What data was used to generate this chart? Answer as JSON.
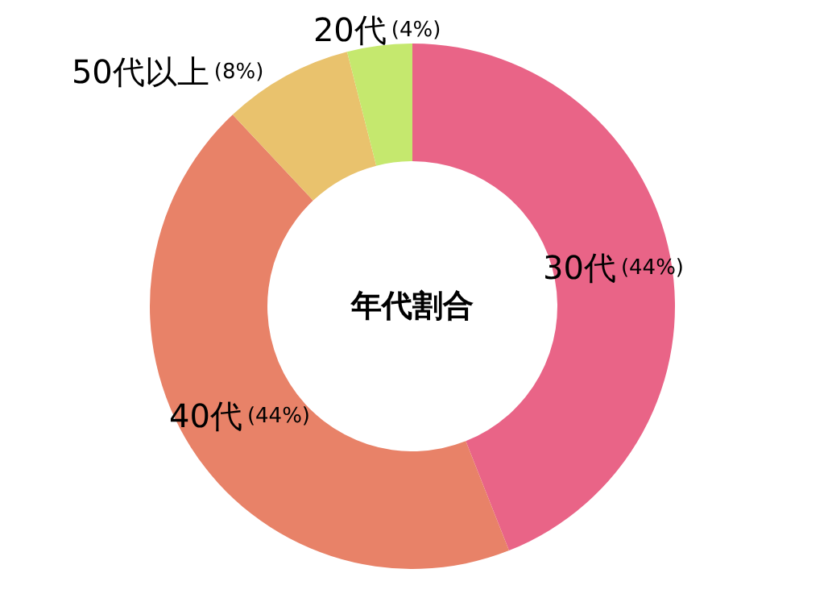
{
  "chart_data": {
    "type": "donut",
    "title": "年代割合",
    "categories": [
      "30代",
      "40代",
      "50代以上",
      "20代"
    ],
    "values": [
      44,
      44,
      8,
      4
    ],
    "value_labels": [
      "(44%)",
      "(44%)",
      "(8%)",
      "(4%)"
    ],
    "colors": [
      "#e96487",
      "#e88268",
      "#e9c26d",
      "#c5e86e"
    ]
  }
}
